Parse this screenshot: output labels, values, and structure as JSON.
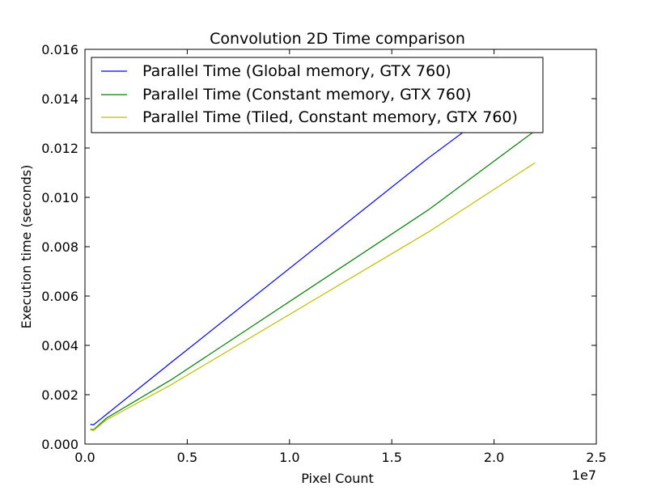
{
  "chart_data": {
    "type": "line",
    "title": "Convolution 2D Time comparison",
    "xlabel": "Pixel Count",
    "ylabel": "Execution time (seconds)",
    "x_offset_label": "1e7",
    "xlim": [
      0,
      2.5
    ],
    "ylim": [
      0,
      0.016
    ],
    "xticks": [
      0.0,
      0.5,
      1.0,
      1.5,
      2.0,
      2.5
    ],
    "xtick_labels": [
      "0.0",
      "0.5",
      "1.0",
      "1.5",
      "2.0",
      "2.5"
    ],
    "yticks": [
      0,
      0.002,
      0.004,
      0.006,
      0.008,
      0.01,
      0.012,
      0.014,
      0.016
    ],
    "ytick_labels": [
      "0.000",
      "0.002",
      "0.004",
      "0.006",
      "0.008",
      "0.010",
      "0.012",
      "0.014",
      "0.016"
    ],
    "grid": false,
    "legend_position": "top-left",
    "series": [
      {
        "name": "Parallel Time (Global memory, GTX 760)",
        "color": "#0000ff",
        "x": [
          0.026,
          0.042,
          0.105,
          0.42,
          1.68,
          2.2
        ],
        "y": [
          0.0008,
          0.00078,
          0.0012,
          0.0033,
          0.0116,
          0.0148
        ]
      },
      {
        "name": "Parallel Time (Constant memory, GTX 760)",
        "color": "#008000",
        "x": [
          0.026,
          0.042,
          0.105,
          0.42,
          1.68,
          2.2
        ],
        "y": [
          0.0006,
          0.00058,
          0.00105,
          0.0026,
          0.0095,
          0.0127
        ]
      },
      {
        "name": "Parallel Time (Tiled, Constant memory, GTX 760)",
        "color": "#bfbf00",
        "x": [
          0.026,
          0.042,
          0.105,
          0.42,
          1.68,
          2.2
        ],
        "y": [
          0.00058,
          0.00055,
          0.00098,
          0.0024,
          0.0086,
          0.0114
        ]
      }
    ]
  }
}
